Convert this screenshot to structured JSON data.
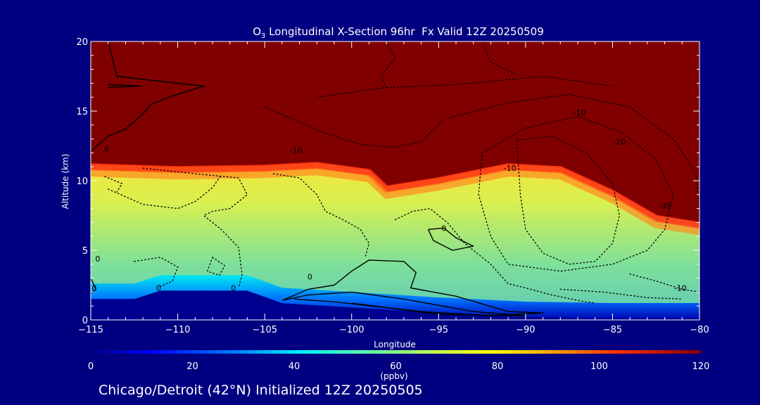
{
  "chart_data": {
    "type": "heatmap",
    "title_prefix": "O",
    "title_sub": "3",
    "title_rest": " Longitudinal X-Section 96hr  Fx Valid 12Z 20250509",
    "xlabel": "Longitude",
    "ylabel": "Altitude (km)",
    "xlim": [
      -115,
      -80
    ],
    "ylim": [
      0,
      20
    ],
    "x_ticks": [
      -115,
      -110,
      -105,
      -100,
      -95,
      -90,
      -85,
      -80
    ],
    "y_ticks": [
      0,
      5,
      10,
      15,
      20
    ],
    "colorbar": {
      "label": "(ppbv)",
      "range": [
        0,
        120
      ],
      "ticks": [
        0,
        20,
        40,
        60,
        80,
        100,
        120
      ]
    },
    "subtitle": "Chicago/Detroit (42°N) Initialized 12Z 20250505",
    "ozone_top_ppbv": 120,
    "tropopause_height_km": [
      {
        "lon": -115,
        "alt": 11.2
      },
      {
        "lon": -110,
        "alt": 11.0
      },
      {
        "lon": -105,
        "alt": 11.1
      },
      {
        "lon": -102,
        "alt": 11.3
      },
      {
        "lon": -99,
        "alt": 10.8
      },
      {
        "lon": -98,
        "alt": 9.6
      },
      {
        "lon": -95,
        "alt": 10.2
      },
      {
        "lon": -91,
        "alt": 11.2
      },
      {
        "lon": -88,
        "alt": 11.0
      },
      {
        "lon": -85,
        "alt": 9.3
      },
      {
        "lon": -82.5,
        "alt": 7.5
      },
      {
        "lon": -80,
        "alt": 7.0
      }
    ],
    "surface_blue_top_km": [
      {
        "lon": -115,
        "alt": 1.5
      },
      {
        "lon": -112.5,
        "alt": 1.5
      },
      {
        "lon": -111,
        "alt": 2.1
      },
      {
        "lon": -106,
        "alt": 2.1
      },
      {
        "lon": -104,
        "alt": 1.2
      },
      {
        "lon": -100,
        "alt": 0.9
      },
      {
        "lon": -95,
        "alt": 0.5
      },
      {
        "lon": -90,
        "alt": 0.2
      },
      {
        "lon": -85,
        "alt": 0.1
      },
      {
        "lon": -80,
        "alt": 0.1
      }
    ],
    "contour_labels": [
      {
        "text": "0",
        "lon": -114.1,
        "alt": 12.1
      },
      {
        "text": "-10",
        "lon": -103.2,
        "alt": 12.0
      },
      {
        "text": "-10",
        "lon": -86.9,
        "alt": 14.7
      },
      {
        "text": "-20",
        "lon": -84.6,
        "alt": 12.6
      },
      {
        "text": "-10",
        "lon": -90.9,
        "alt": 10.7
      },
      {
        "text": "-30",
        "lon": -82.0,
        "alt": 8.0
      },
      {
        "text": "0",
        "lon": -94.7,
        "alt": 6.4
      },
      {
        "text": "0",
        "lon": -114.6,
        "alt": 4.2
      },
      {
        "text": "0",
        "lon": -114.8,
        "alt": 2.1
      },
      {
        "text": "0",
        "lon": -111.1,
        "alt": 2.1
      },
      {
        "text": "0",
        "lon": -106.8,
        "alt": 2.1
      },
      {
        "text": "0",
        "lon": -102.4,
        "alt": 2.9
      },
      {
        "text": "-10",
        "lon": -81.1,
        "alt": 2.1
      }
    ],
    "solid_zero_contours": [
      [
        [
          -114,
          20
        ],
        [
          -113.5,
          17.5
        ],
        [
          -110,
          17
        ],
        [
          -108.5,
          16.8
        ],
        [
          -110.5,
          16
        ],
        [
          -111.5,
          15.5
        ],
        [
          -112,
          14.8
        ],
        [
          -113,
          13.7
        ],
        [
          -114,
          13.2
        ],
        [
          -115,
          12.1
        ]
      ],
      [
        [
          -114,
          16.9
        ],
        [
          -112.1,
          16.8
        ],
        [
          -114,
          16.7
        ]
      ],
      [
        [
          -104,
          1.4
        ],
        [
          -102.5,
          2.2
        ],
        [
          -101,
          2.5
        ],
        [
          -100,
          3.5
        ],
        [
          -99,
          4.3
        ],
        [
          -97,
          4.2
        ],
        [
          -96.3,
          3.4
        ],
        [
          -96.6,
          2.3
        ],
        [
          -94,
          1.7
        ],
        [
          -91,
          0.6
        ],
        [
          -89,
          0.5
        ],
        [
          -92,
          0.3
        ],
        [
          -96,
          0.6
        ],
        [
          -101,
          1.3
        ],
        [
          -103.3,
          1.5
        ]
      ],
      [
        [
          -104,
          1.4
        ],
        [
          -102.5,
          1.8
        ],
        [
          -100,
          2.0
        ],
        [
          -97,
          1.5
        ],
        [
          -93,
          0.6
        ],
        [
          -90,
          0.3
        ],
        [
          -95,
          0.4
        ],
        [
          -100,
          1.2
        ]
      ],
      [
        [
          -95.6,
          6.5
        ],
        [
          -94.7,
          6.6
        ],
        [
          -94,
          5.9
        ],
        [
          -93,
          5.3
        ],
        [
          -94.2,
          5.0
        ],
        [
          -95.3,
          5.7
        ],
        [
          -95.6,
          6.5
        ]
      ],
      [
        [
          -115,
          3.0
        ],
        [
          -114.7,
          2.2
        ],
        [
          -115,
          1.9
        ]
      ]
    ],
    "dotted_negative_contours": [
      [
        [
          -112,
          10.9
        ],
        [
          -109,
          10.5
        ],
        [
          -106.5,
          10.2
        ],
        [
          -106,
          9
        ],
        [
          -107,
          8
        ],
        [
          -108,
          7.8
        ],
        [
          -108.5,
          7.5
        ],
        [
          -107.5,
          6.5
        ],
        [
          -106.5,
          5.2
        ],
        [
          -106.3,
          3.3
        ],
        [
          -106.5,
          2.3
        ]
      ],
      [
        [
          -114,
          9.4
        ],
        [
          -112,
          8.3
        ],
        [
          -110,
          8
        ],
        [
          -109,
          8.5
        ],
        [
          -108,
          9.5
        ],
        [
          -107.5,
          10.4
        ]
      ],
      [
        [
          -104.5,
          10.5
        ],
        [
          -103,
          10.2
        ],
        [
          -102,
          9
        ],
        [
          -101.5,
          7.8
        ],
        [
          -100.5,
          7.2
        ],
        [
          -99.5,
          6.5
        ],
        [
          -99,
          5.5
        ],
        [
          -99.2,
          4.6
        ]
      ],
      [
        [
          -97.5,
          7.2
        ],
        [
          -96.5,
          7.8
        ],
        [
          -95.5,
          8
        ],
        [
          -94.5,
          7
        ],
        [
          -93.5,
          5.5
        ],
        [
          -92,
          4
        ],
        [
          -91,
          2.6
        ],
        [
          -90,
          2.3
        ],
        [
          -88.5,
          1.8
        ],
        [
          -87,
          1.4
        ],
        [
          -86,
          1.2
        ]
      ],
      [
        [
          -112.5,
          4.2
        ],
        [
          -111,
          4.5
        ],
        [
          -110,
          3.8
        ],
        [
          -110.3,
          2.8
        ],
        [
          -111,
          2.4
        ]
      ],
      [
        [
          -108,
          4.5
        ],
        [
          -107.3,
          3.9
        ],
        [
          -107.6,
          3.2
        ],
        [
          -108.3,
          3.5
        ],
        [
          -108,
          4.5
        ]
      ],
      [
        [
          -90.5,
          12.9
        ],
        [
          -88.5,
          13.2
        ],
        [
          -86.5,
          12
        ],
        [
          -85,
          9.8
        ],
        [
          -84.6,
          7.5
        ],
        [
          -85,
          5.5
        ],
        [
          -86,
          4.2
        ],
        [
          -87.5,
          4.0
        ],
        [
          -89,
          4.8
        ],
        [
          -90,
          6.5
        ],
        [
          -90.3,
          9
        ],
        [
          -90.5,
          12.9
        ]
      ],
      [
        [
          -90,
          13.8
        ],
        [
          -87,
          14.6
        ],
        [
          -84.5,
          13.5
        ],
        [
          -82.5,
          11.5
        ],
        [
          -81.5,
          9
        ],
        [
          -82,
          6.5
        ],
        [
          -83,
          5
        ],
        [
          -85,
          4
        ],
        [
          -88,
          3.5
        ],
        [
          -91,
          4
        ],
        [
          -92,
          6
        ],
        [
          -92.7,
          9
        ],
        [
          -92.5,
          12
        ],
        [
          -90,
          13.8
        ]
      ],
      [
        [
          -94.5,
          14.5
        ],
        [
          -91,
          15.6
        ],
        [
          -87.5,
          16.2
        ],
        [
          -84,
          15.3
        ],
        [
          -81.5,
          13
        ],
        [
          -80.2,
          10.5
        ],
        [
          -80,
          8
        ]
      ],
      [
        [
          -102,
          16
        ],
        [
          -98,
          16.7
        ],
        [
          -94,
          16.9
        ],
        [
          -89,
          17.5
        ],
        [
          -85,
          16.8
        ]
      ],
      [
        [
          -105,
          15.3
        ],
        [
          -103,
          14.2
        ],
        [
          -101.5,
          13.4
        ],
        [
          -99.5,
          12.6
        ],
        [
          -97.5,
          12.4
        ],
        [
          -96,
          12.8
        ],
        [
          -94.8,
          14.3
        ]
      ],
      [
        [
          -98,
          20
        ],
        [
          -97.5,
          18.8
        ],
        [
          -98.3,
          17.5
        ],
        [
          -98,
          16.7
        ]
      ],
      [
        [
          -92.5,
          20
        ],
        [
          -92,
          18.5
        ],
        [
          -90.5,
          17.6
        ]
      ],
      [
        [
          -114.2,
          10.3
        ],
        [
          -113.2,
          9.8
        ],
        [
          -113.5,
          9.2
        ]
      ],
      [
        [
          -84,
          3.3
        ],
        [
          -82.5,
          2.8
        ],
        [
          -81,
          2.2
        ],
        [
          -80,
          2.0
        ]
      ],
      [
        [
          -88,
          2.2
        ],
        [
          -85.5,
          2.0
        ],
        [
          -83,
          1.6
        ],
        [
          -81,
          1.5
        ]
      ]
    ]
  }
}
